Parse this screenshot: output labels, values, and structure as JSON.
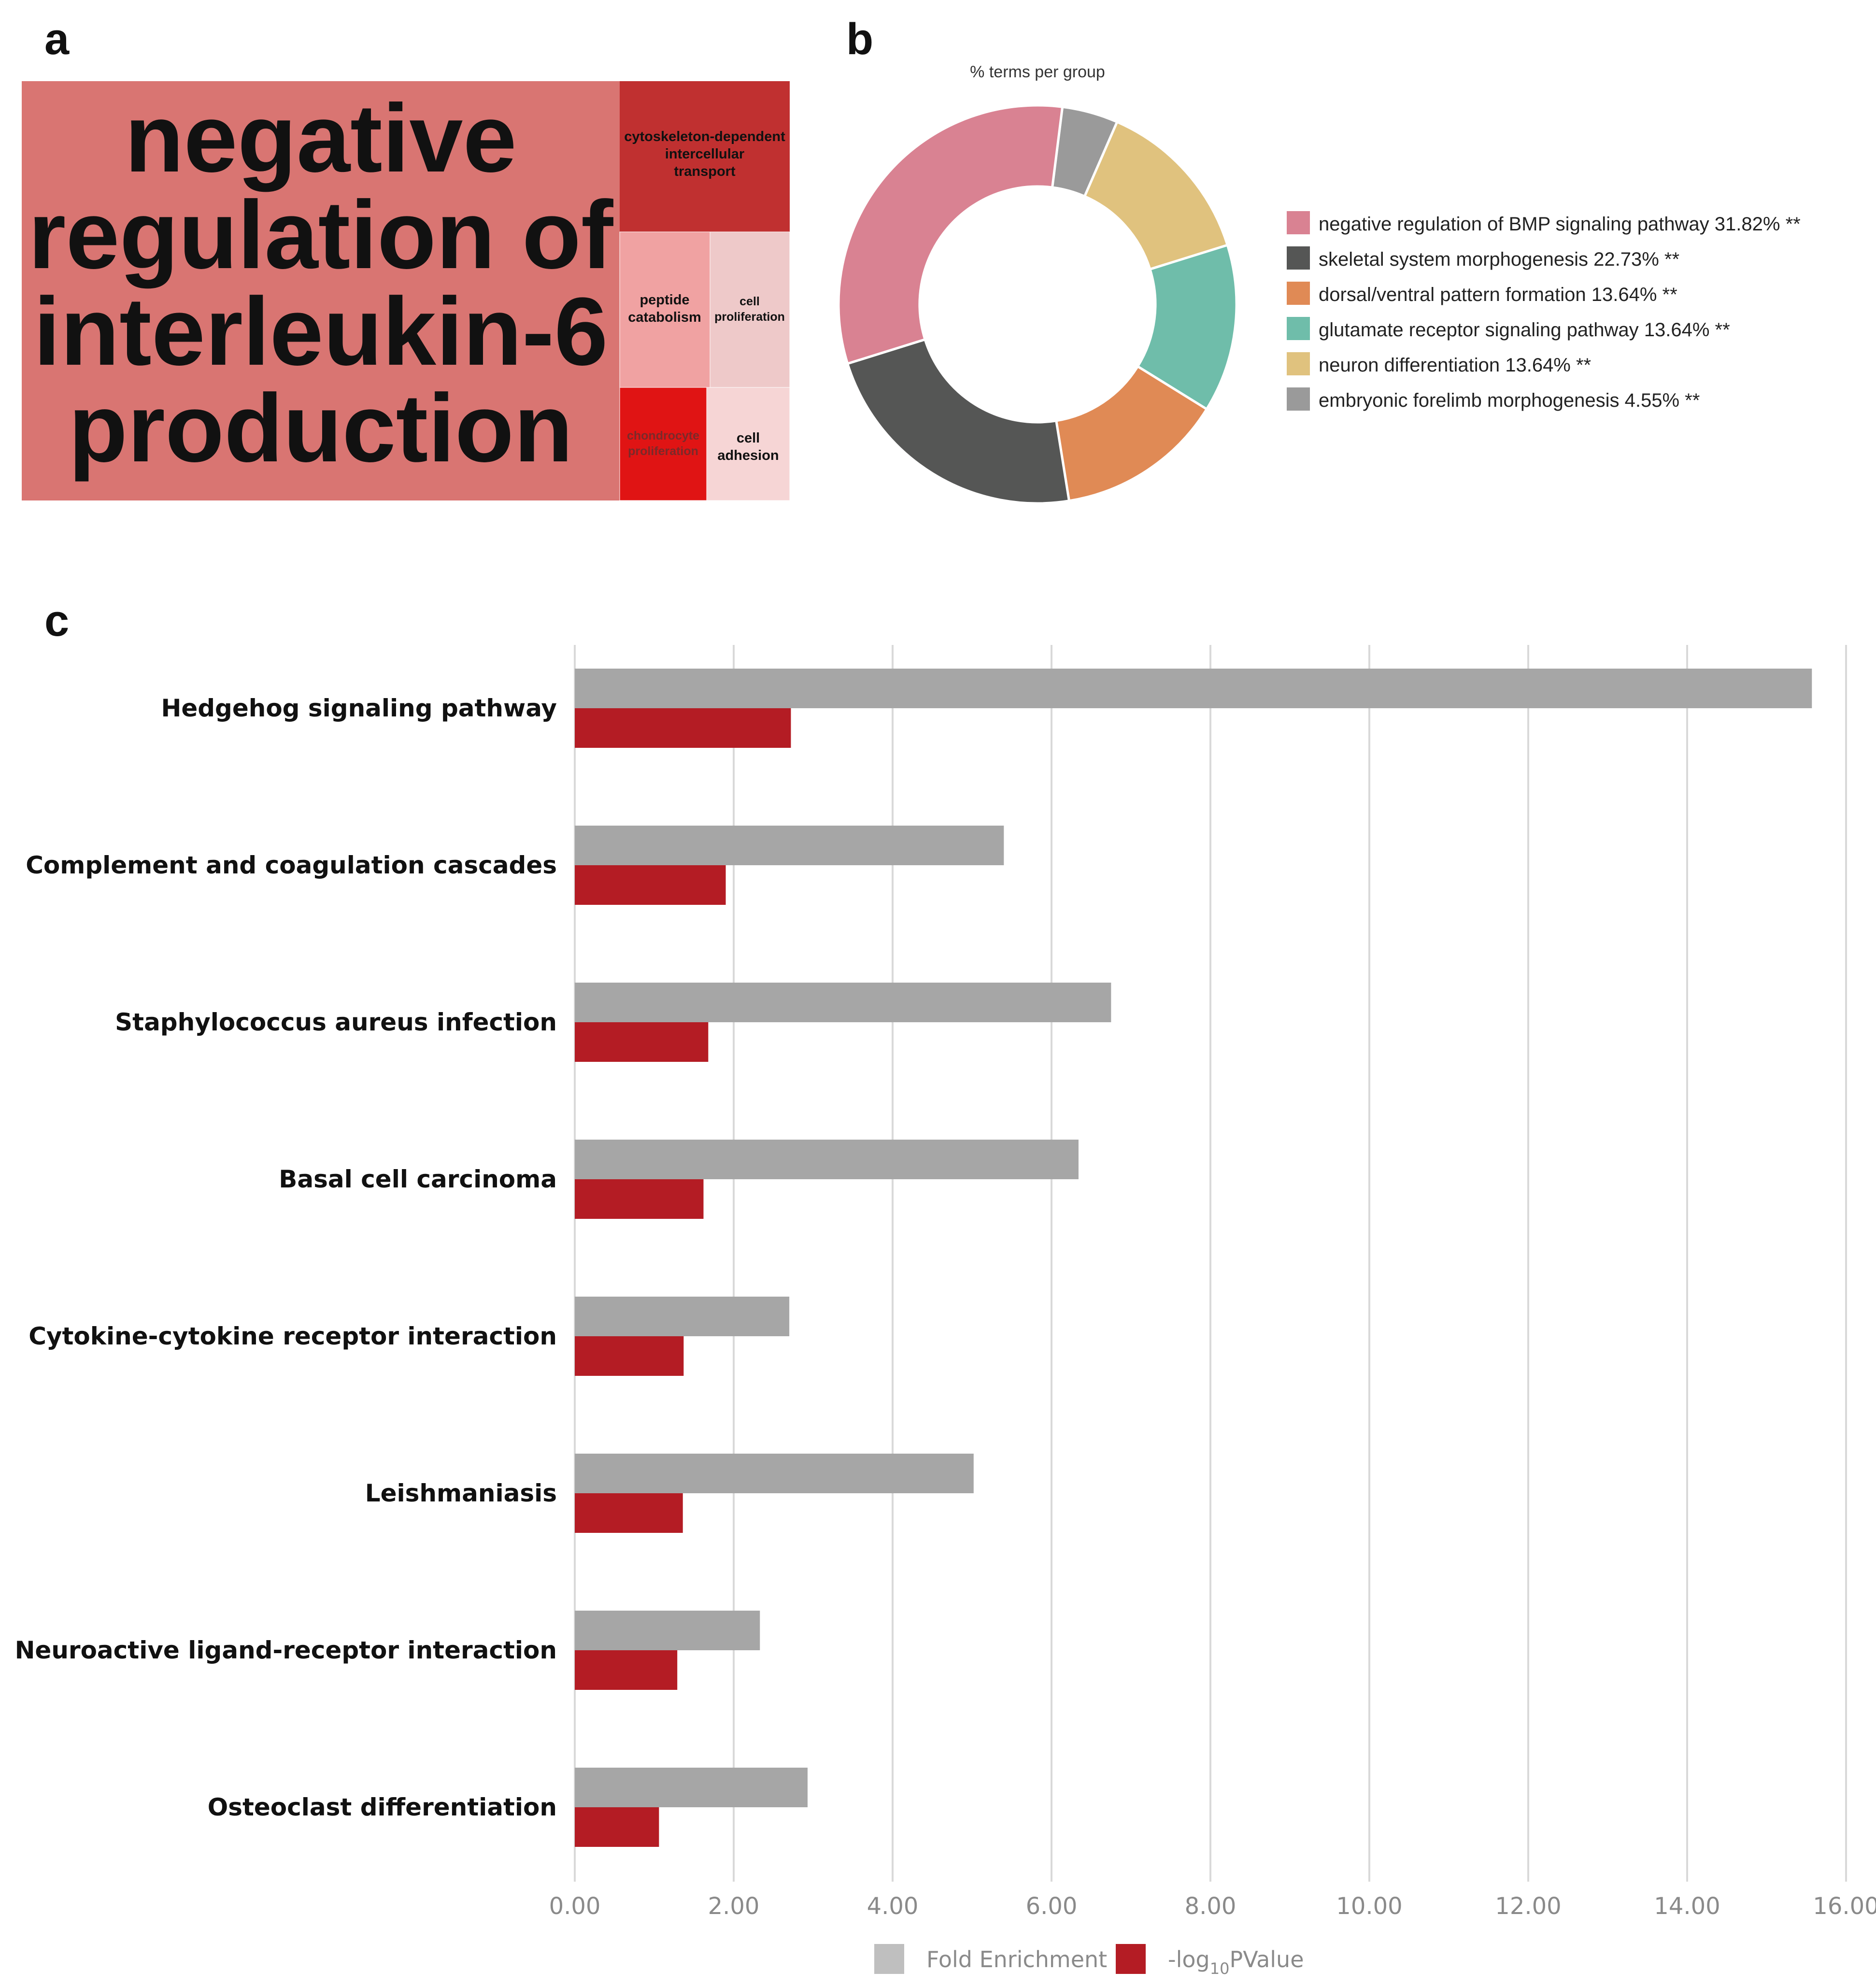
{
  "panels": {
    "a": "a",
    "b": "b",
    "c": "c"
  },
  "treemap": {
    "main": {
      "lines": [
        "negative",
        "regulation of",
        "interleukin-6",
        "production"
      ],
      "color": "#d97572"
    },
    "tiles": [
      {
        "lines": [
          "cytoskeleton-dependent",
          "intercellular",
          "transport"
        ],
        "color": "#c03030"
      },
      {
        "lines": [
          "peptide",
          "catabolism"
        ],
        "color": "#f0a2a2"
      },
      {
        "lines": [
          "cell",
          "proliferation"
        ],
        "color": "#eec9c9"
      },
      {
        "lines": [
          "chondrocyte",
          "proliferation"
        ],
        "color": "#e01414"
      },
      {
        "lines": [
          "cell",
          "adhesion"
        ],
        "color": "#f6d5d5"
      }
    ]
  },
  "chart_data": [
    {
      "type": "pie",
      "title": "% terms per group",
      "donut": true,
      "slices": [
        {
          "label": "negative regulation of BMP signaling pathway 31.82% **",
          "value": 31.82,
          "color": "#d98292"
        },
        {
          "label": "skeletal system morphogenesis 22.73% **",
          "value": 22.73,
          "color": "#555655"
        },
        {
          "label": "dorsal/ventral pattern formation 13.64% **",
          "value": 13.64,
          "color": "#e08a55"
        },
        {
          "label": "glutamate receptor signaling pathway 13.64% **",
          "value": 13.64,
          "color": "#6fbdaa"
        },
        {
          "label": "neuron differentiation 13.64% **",
          "value": 13.64,
          "color": "#e0c27e"
        },
        {
          "label": "embryonic forelimb morphogenesis 4.55% **",
          "value": 4.55,
          "color": "#9a9a9a"
        }
      ],
      "slice_order_clockwise_from_top": [
        5,
        4,
        3,
        2,
        1,
        0
      ],
      "legend_position": "right"
    },
    {
      "type": "bar",
      "orientation": "horizontal",
      "categories": [
        "Hedgehog signaling pathway",
        "Complement and coagulation cascades",
        "Staphylococcus aureus infection",
        "Basal cell carcinoma",
        "Cytokine-cytokine receptor interaction",
        "Leishmaniasis",
        "Neuroactive ligand-receptor interaction",
        "Osteoclast differentiation"
      ],
      "series": [
        {
          "name": "Fold Enrichment",
          "color": "#a6a6a6",
          "values": [
            15.57,
            5.4,
            6.75,
            6.34,
            2.7,
            5.02,
            2.33,
            2.93
          ]
        },
        {
          "name": "-log10PValue",
          "color": "#b41c24",
          "values": [
            2.72,
            1.9,
            1.68,
            1.62,
            1.37,
            1.36,
            1.29,
            1.06
          ]
        }
      ],
      "xlim": [
        0,
        16
      ],
      "ticks": [
        "0.00",
        "2.00",
        "4.00",
        "6.00",
        "8.00",
        "10.00",
        "12.00",
        "14.00",
        "16.00"
      ],
      "grid": true,
      "legend": {
        "fold": "Fold Enrichment",
        "logp_prefix": "-log",
        "logp_sub": "10",
        "logp_suffix": "PValue"
      }
    }
  ]
}
